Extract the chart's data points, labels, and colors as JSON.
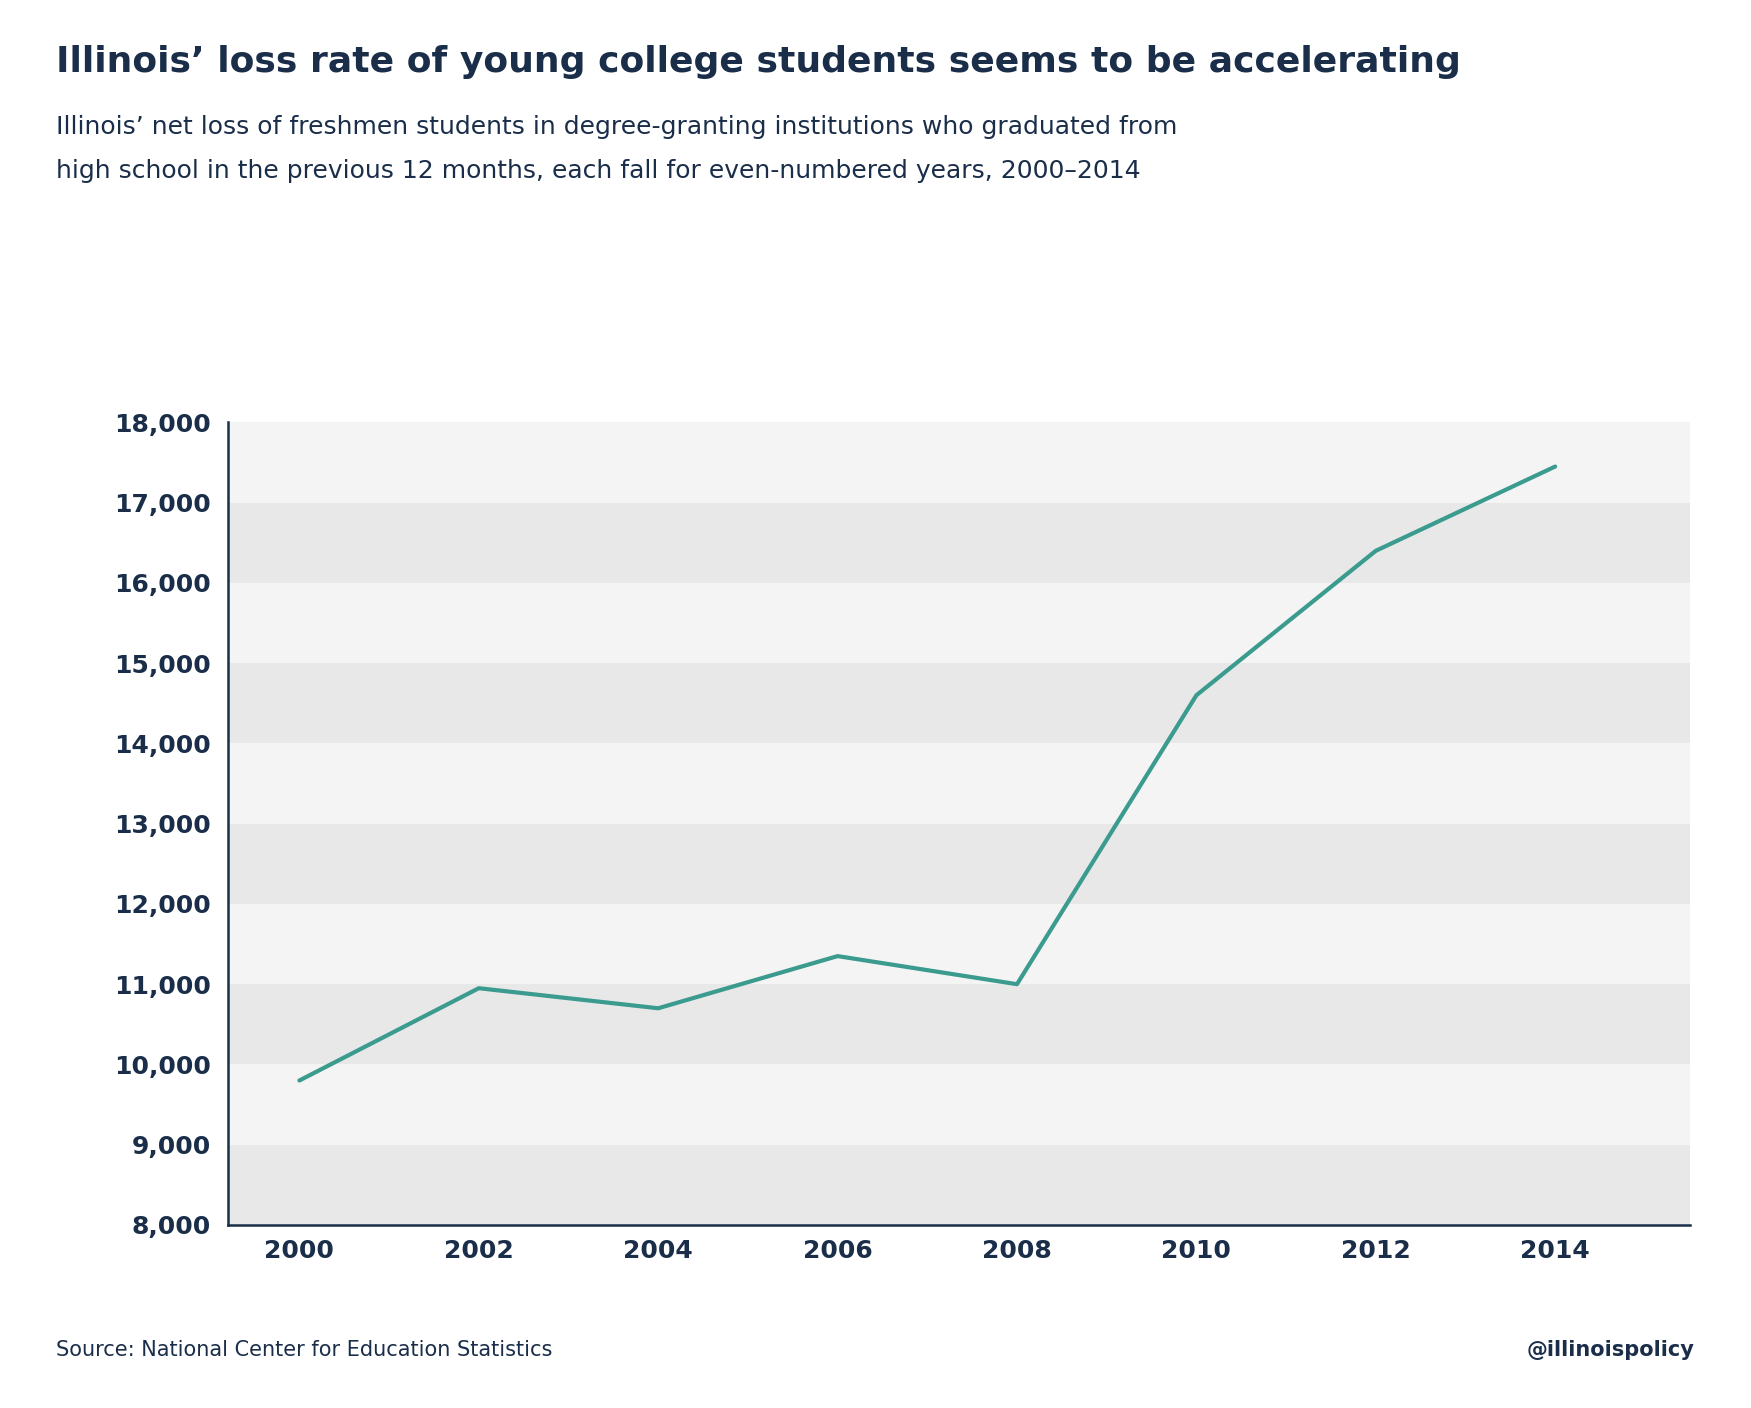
{
  "title": "Illinois’ loss rate of young college students seems to be accelerating",
  "subtitle_line1": "Illinois’ net loss of freshmen students in degree-granting institutions who graduated from",
  "subtitle_line2": "high school in the previous 12 months, each fall for even-numbered years, 2000–2014",
  "source": "Source: National Center for Education Statistics",
  "watermark": "@illinoispolicy",
  "x_values": [
    2000,
    2002,
    2004,
    2006,
    2008,
    2010,
    2012,
    2014
  ],
  "y_values": [
    9800,
    10950,
    10700,
    11350,
    11000,
    14600,
    16400,
    17450
  ],
  "line_color": "#3a9b8e",
  "line_width": 3.0,
  "background_color": "#ffffff",
  "band_color_dark": "#e8e8e8",
  "band_color_light": "#f4f4f4",
  "ylim": [
    8000,
    18000
  ],
  "yticks": [
    8000,
    9000,
    10000,
    11000,
    12000,
    13000,
    14000,
    15000,
    16000,
    17000,
    18000
  ],
  "xticks": [
    2000,
    2002,
    2004,
    2006,
    2008,
    2010,
    2012,
    2014
  ],
  "title_color": "#1a2e4a",
  "axis_color": "#1a2e4a",
  "tick_color": "#1a2e4a",
  "title_fontsize": 26,
  "subtitle_fontsize": 18,
  "tick_fontsize": 18,
  "source_fontsize": 15
}
